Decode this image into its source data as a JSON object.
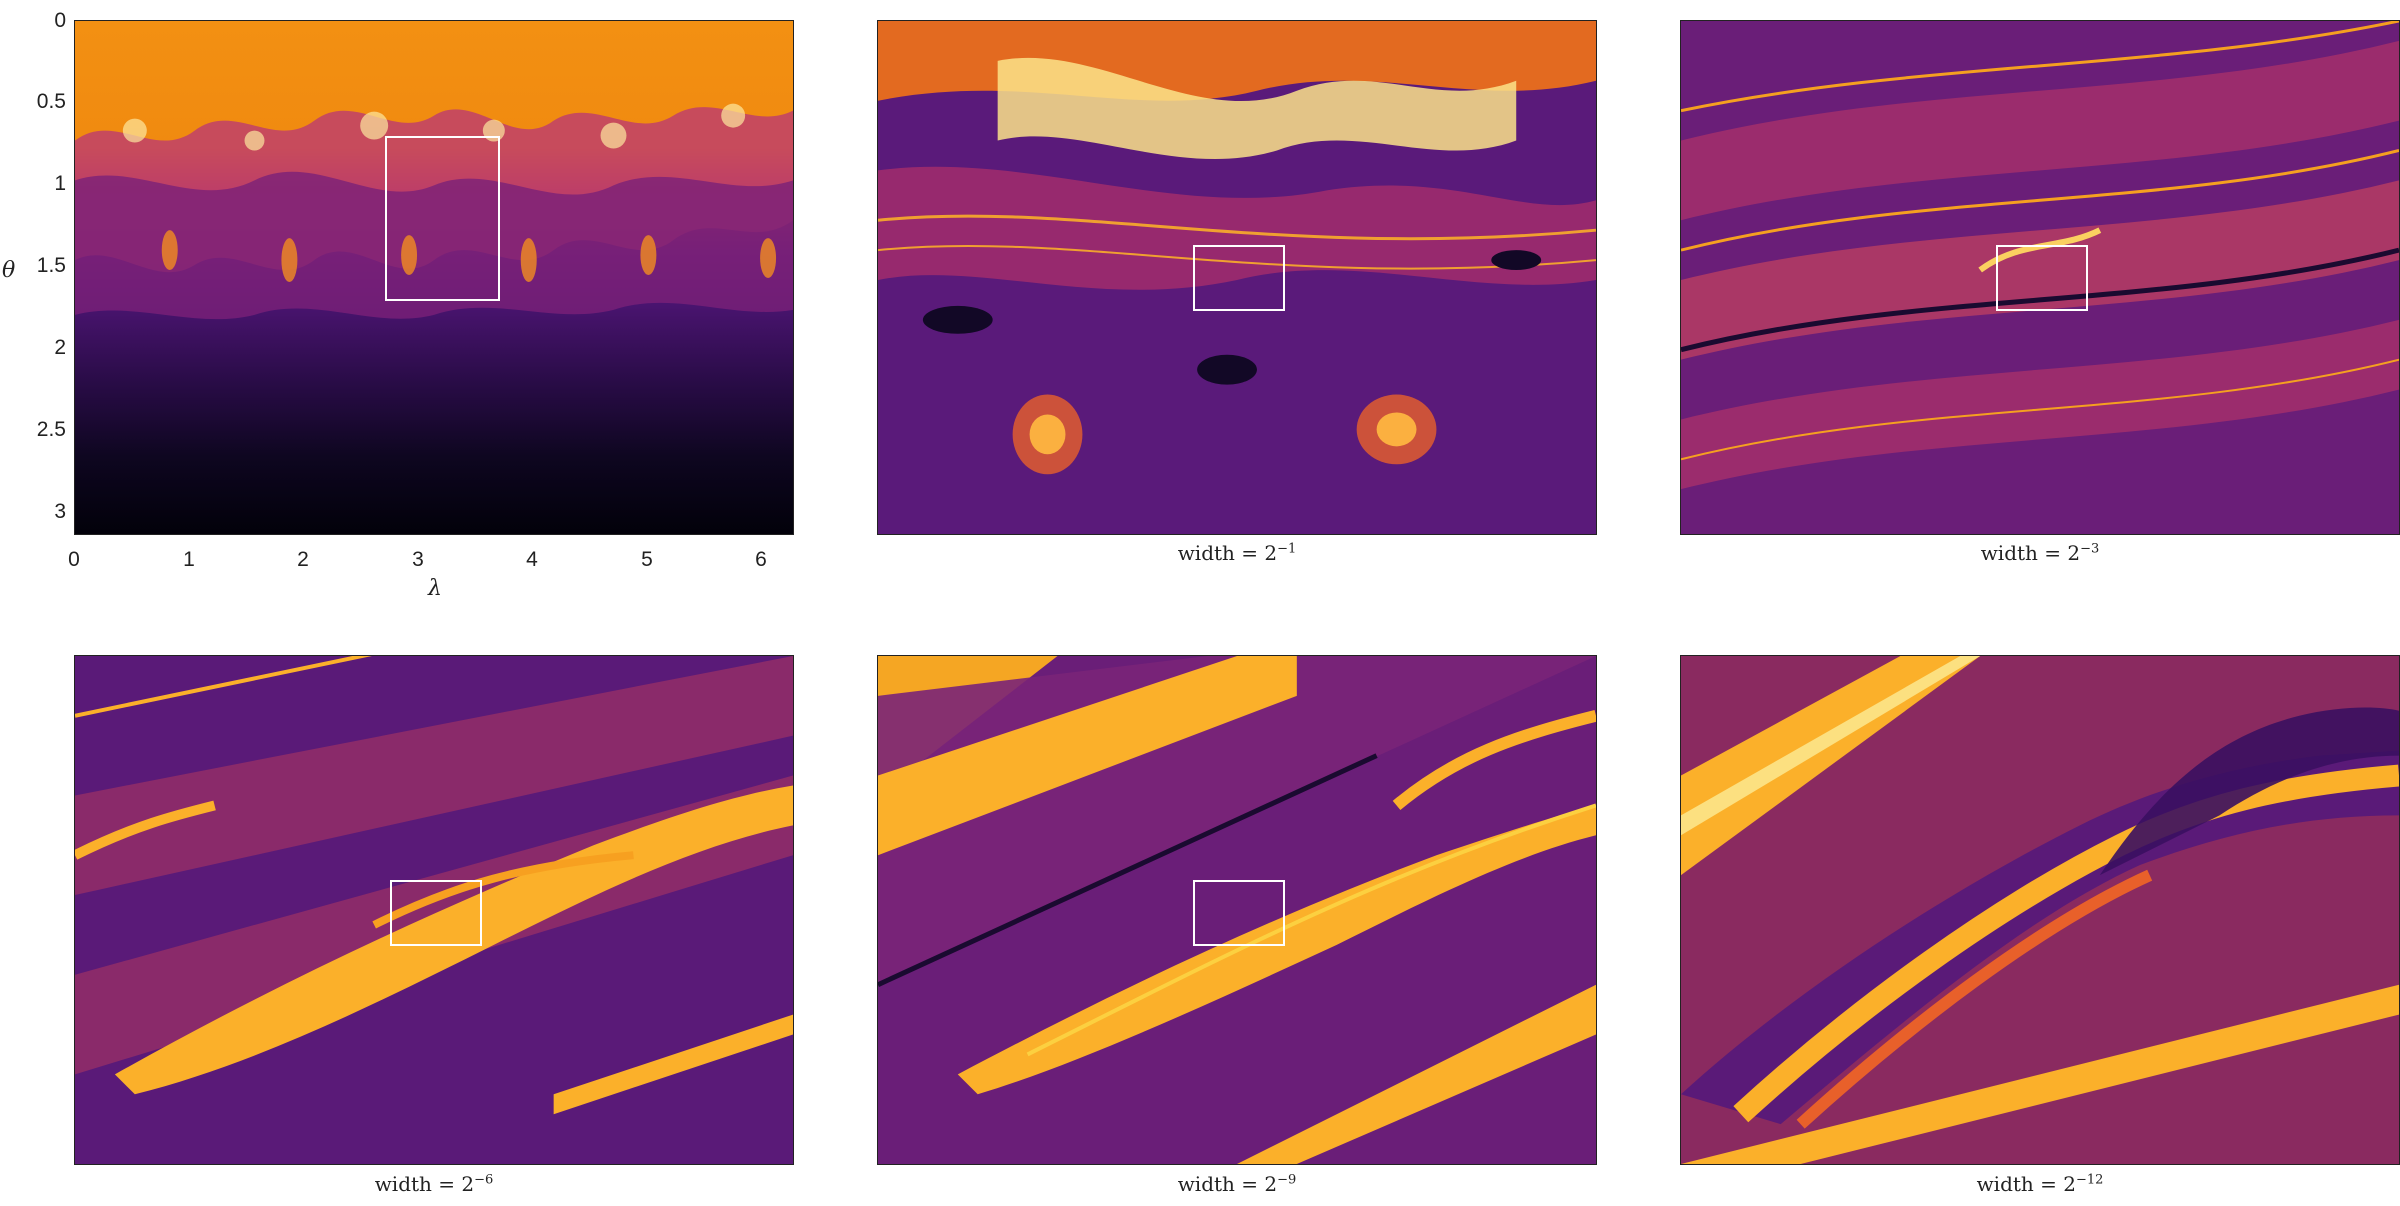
{
  "colors": {
    "dark": "#0a0418",
    "purple": "#5a1a78",
    "magenta": "#8a2a6a",
    "orange": "#f08a10",
    "yellow": "#fbc02a",
    "pale": "#fcf0a0"
  },
  "overview": {
    "ylabel": "θ",
    "xlabel": "λ",
    "yticks": [
      "0",
      "0.5",
      "1",
      "1.5",
      "2",
      "2.5",
      "3"
    ],
    "xticks": [
      "0",
      "1",
      "2",
      "3",
      "4",
      "5",
      "6"
    ]
  },
  "panels": [
    {
      "caption_base": "width = 2",
      "caption_exp": "−1"
    },
    {
      "caption_base": "width = 2",
      "caption_exp": "−3"
    },
    {
      "caption_base": "width = 2",
      "caption_exp": "−6"
    },
    {
      "caption_base": "width = 2",
      "caption_exp": "−9"
    },
    {
      "caption_base": "width = 2",
      "caption_exp": "−12"
    }
  ]
}
